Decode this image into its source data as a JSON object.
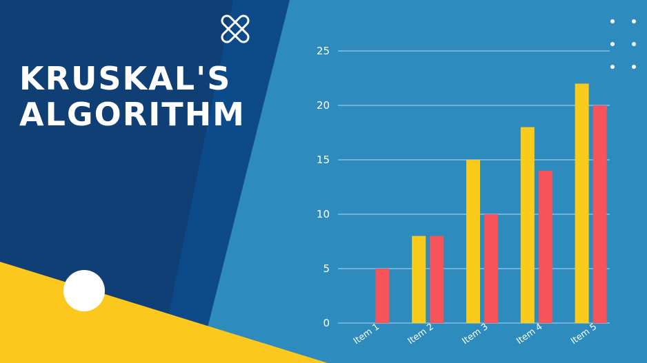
{
  "title_lines": [
    "KRUSKAL'S",
    "ALGORITHM"
  ],
  "colors": {
    "background": "#2e8bbd",
    "dark_panel": "#0f3f74",
    "mid_panel": "#0c4a8a",
    "accent_yellow": "#fdc81e",
    "series_yellow": "#f9cc1c",
    "series_red": "#f7545a",
    "text": "#ffffff"
  },
  "icons": [
    "close-icon",
    "dot-grid-icon",
    "circle-decoration-icon"
  ],
  "chart_data": {
    "type": "bar",
    "categories": [
      "Item 1",
      "Item 2",
      "Item 3",
      "Item 4",
      "Item 5"
    ],
    "series": [
      {
        "values": [
          0,
          8,
          15,
          18,
          22
        ],
        "color": "#f9cc1c"
      },
      {
        "values": [
          5,
          8,
          10,
          14,
          20
        ],
        "color": "#f7545a"
      }
    ],
    "yticks": [
      0,
      5,
      10,
      15,
      20,
      25
    ],
    "ylim": [
      0,
      25
    ],
    "grid": true,
    "legend": "none"
  }
}
